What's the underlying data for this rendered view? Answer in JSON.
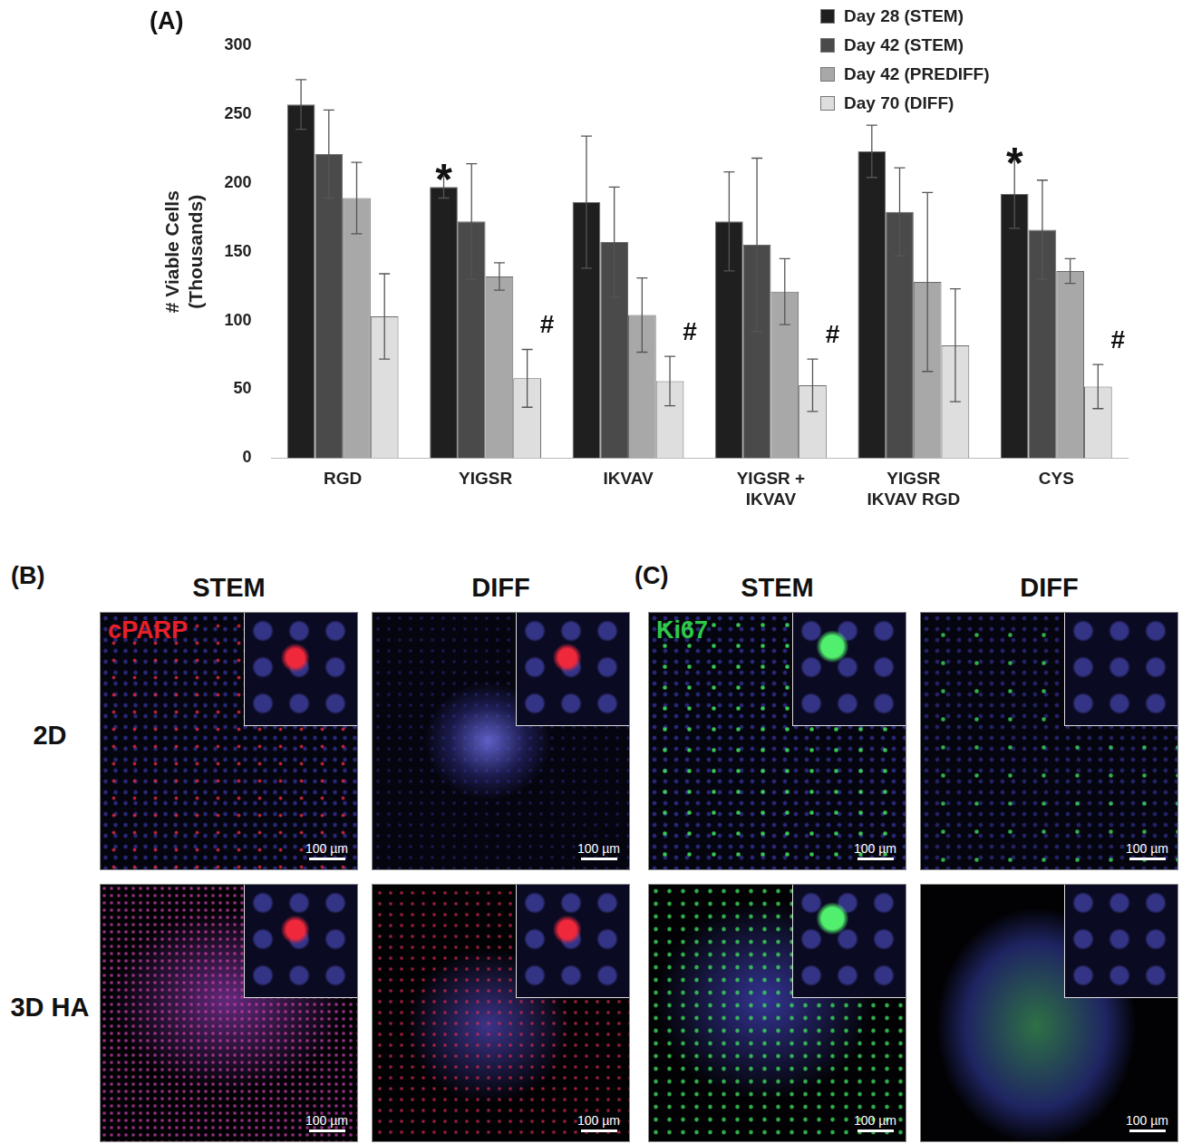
{
  "chart_data": {
    "type": "bar",
    "panel_label": "(A)",
    "y_label": [
      "# Viable Cells",
      "(Thousands)"
    ],
    "categories": [
      "RGD",
      "YIGSR",
      "IKVAV",
      [
        "YIGSR +",
        "IKVAV"
      ],
      [
        "YIGSR",
        "IKVAV RGD"
      ],
      "CYS"
    ],
    "series": [
      {
        "name": "Day 28 (STEM)",
        "color": "#1f1f1f",
        "values": [
          257,
          197,
          186,
          172,
          223,
          192
        ],
        "errors": [
          18,
          8,
          48,
          36,
          19,
          25
        ]
      },
      {
        "name": "Day 42 (STEM)",
        "color": "#4a4a4a",
        "values": [
          221,
          172,
          157,
          155,
          179,
          166
        ],
        "errors": [
          32,
          42,
          40,
          63,
          32,
          36
        ]
      },
      {
        "name": "Day 42 (PREDIFF)",
        "color": "#a8a8a8",
        "values": [
          189,
          132,
          104,
          121,
          128,
          136
        ],
        "errors": [
          26,
          10,
          27,
          24,
          65,
          9
        ]
      },
      {
        "name": "Day 70 (DIFF)",
        "color": "#dedede",
        "values": [
          103,
          58,
          56,
          53,
          82,
          52
        ],
        "errors": [
          31,
          21,
          18,
          19,
          41,
          16
        ]
      }
    ],
    "ylim": [
      0,
      300
    ],
    "yticks": [
      0,
      50,
      100,
      150,
      200,
      250,
      300
    ],
    "grid": false,
    "legend": "top-right",
    "annotations": [
      {
        "text": "*",
        "category": "YIGSR",
        "series": "Day 28 (STEM)"
      },
      {
        "text": "*",
        "category": "CYS",
        "series": "Day 28 (STEM)"
      },
      {
        "text": "#",
        "category": "YIGSR",
        "series": "Day 70 (DIFF)"
      },
      {
        "text": "#",
        "category": "IKVAV",
        "series": "Day 70 (DIFF)"
      },
      {
        "text": "#",
        "category": [
          "YIGSR +",
          "IKVAV"
        ],
        "series": "Day 70 (DIFF)"
      },
      {
        "text": "#",
        "category": "CYS",
        "series": "Day 70 (DIFF)"
      }
    ]
  },
  "image_rows": [
    "2D",
    "3D HA"
  ],
  "image_panels": [
    {
      "label": "(B)",
      "stain": "cPARP",
      "stain_color": "#e8202a",
      "columns": [
        "STEM",
        "DIFF"
      ],
      "scale_bar": "100 µm"
    },
    {
      "label": "(C)",
      "stain": "Ki67",
      "stain_color": "#2ec84a",
      "columns": [
        "STEM",
        "DIFF"
      ],
      "scale_bar": "100 µm"
    }
  ]
}
